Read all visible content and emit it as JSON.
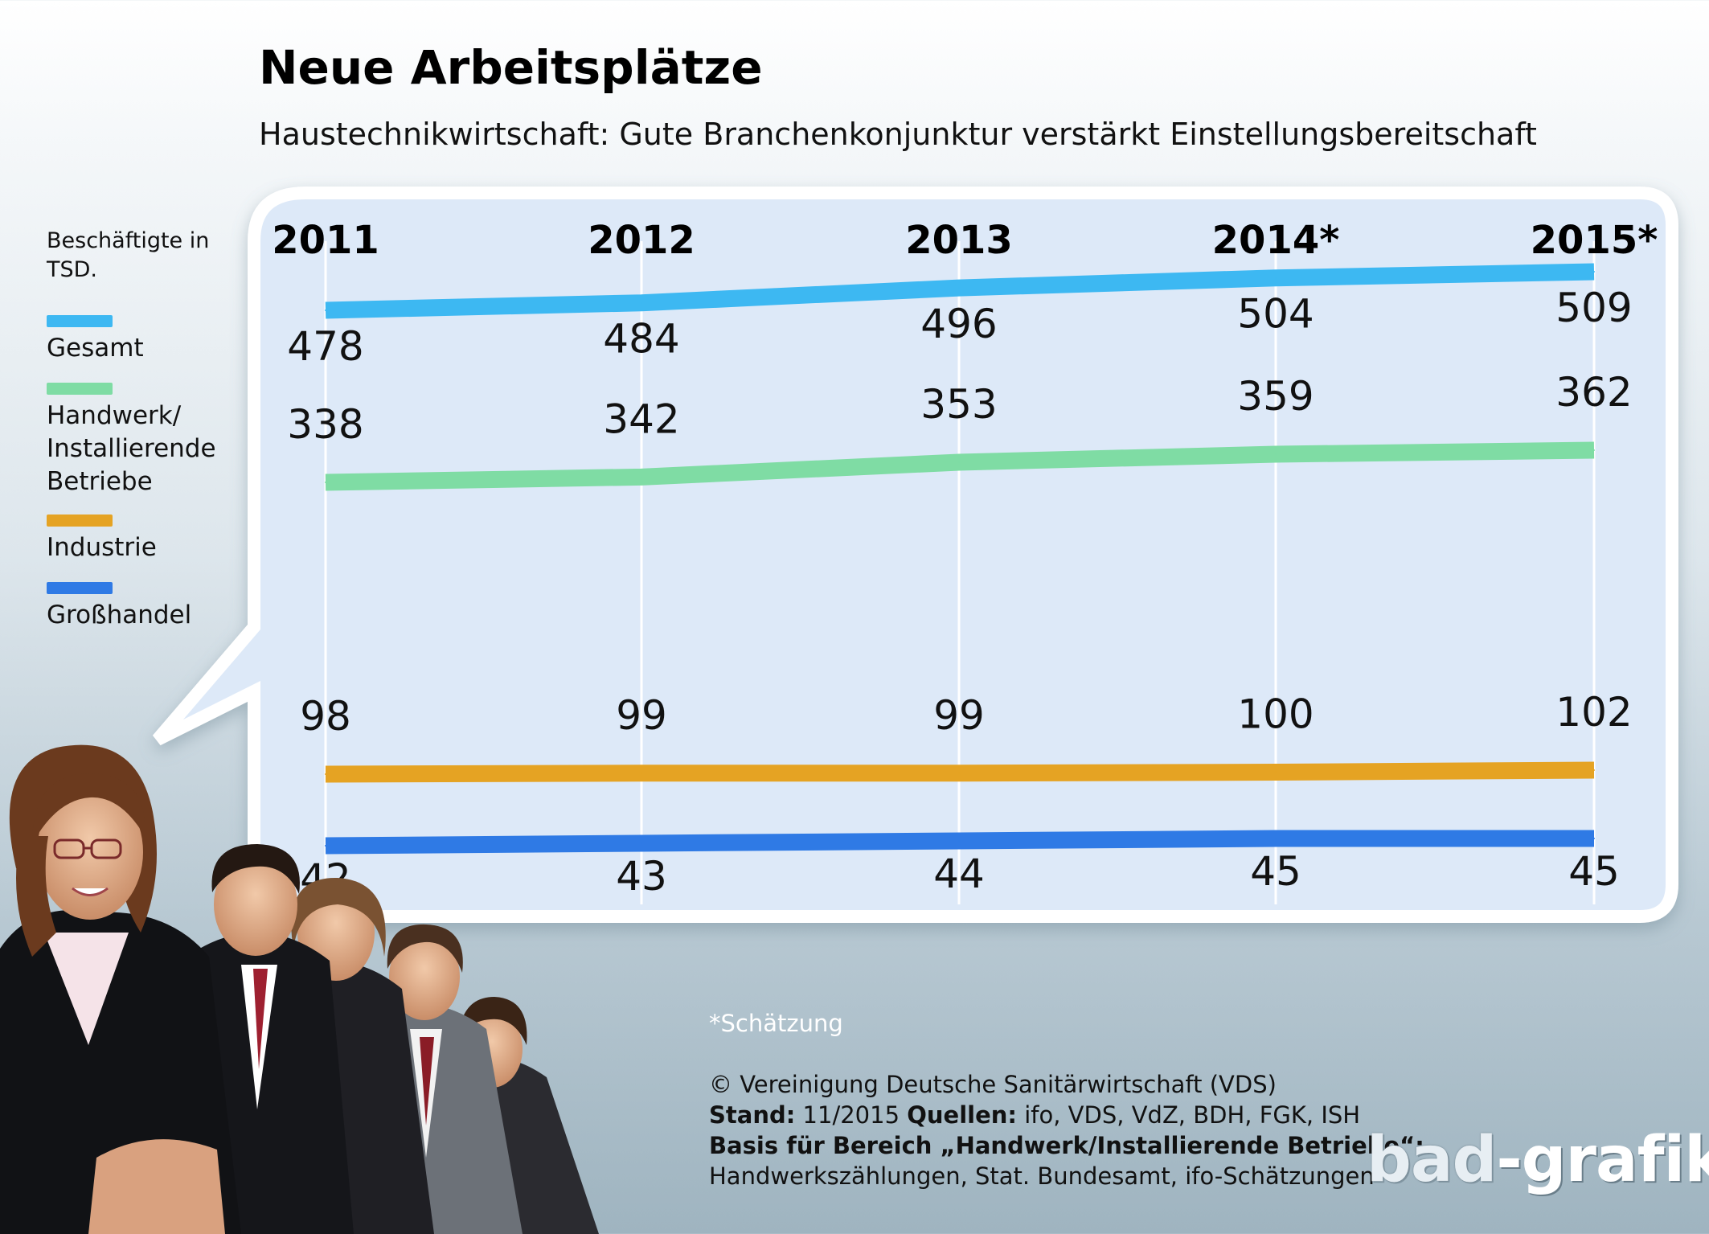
{
  "title": "Neue Arbeitsplätze",
  "subtitle": "Haustechnikwirtschaft: Gute Branchenkonjunktur verstärkt Einstellungsbereitschaft",
  "legend": {
    "unit": "Beschäftigte in TSD.",
    "items": [
      {
        "label": "Gesamt",
        "color": "#3db8f2"
      },
      {
        "label": "Handwerk/ Installierende Betriebe",
        "color": "#7fdca4"
      },
      {
        "label": "Industrie",
        "color": "#e5a323"
      },
      {
        "label": "Großhandel",
        "color": "#2f7ae5"
      }
    ]
  },
  "chart_data": {
    "type": "line",
    "categories": [
      "2011",
      "2012",
      "2013",
      "2014*",
      "2015*"
    ],
    "series": [
      {
        "name": "Gesamt",
        "values": [
          478,
          484,
          496,
          504,
          509
        ],
        "color": "#3db8f2"
      },
      {
        "name": "Handwerk/ Installierende Betriebe",
        "values": [
          338,
          342,
          353,
          359,
          362
        ],
        "color": "#7fdca4"
      },
      {
        "name": "Industrie",
        "values": [
          98,
          99,
          99,
          100,
          102
        ],
        "color": "#e5a323"
      },
      {
        "name": "Großhandel",
        "values": [
          42,
          43,
          44,
          45,
          45
        ],
        "color": "#2f7ae5"
      }
    ],
    "grid": "vertical",
    "panel_color": "#dde9f8"
  },
  "footer": {
    "note": "*Schätzung",
    "copyright": "© Vereinigung Deutsche Sanitärwirtschaft (VDS)",
    "stand_label": "Stand:",
    "stand_value": "11/2015",
    "quellen_label": "Quellen:",
    "quellen_value": "ifo, VDS, VdZ, BDH, FGK, ISH",
    "basis_label": "Basis für Bereich „Handwerk/Installierende Betriebe“:",
    "basis_value": "Handwerkszählungen, Stat. Bundesamt, ifo-Schätzungen"
  },
  "logo": {
    "part1": "bad",
    "part2": "-grafik"
  }
}
